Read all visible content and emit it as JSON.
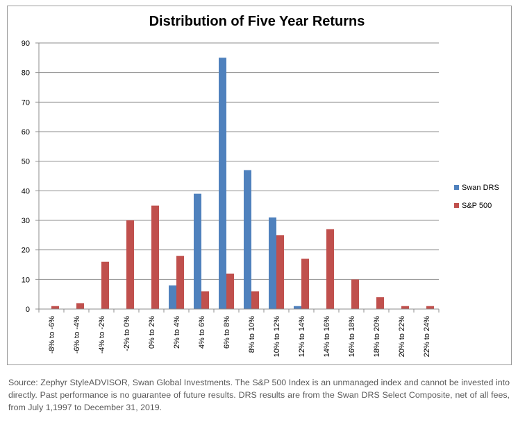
{
  "chart_data": {
    "type": "bar",
    "title": "Distribution of Five Year Returns",
    "xlabel": "",
    "ylabel": "",
    "ylim": [
      0,
      90
    ],
    "yticks": [
      0,
      10,
      20,
      30,
      40,
      50,
      60,
      70,
      80,
      90
    ],
    "grid": true,
    "legend_position": "right",
    "categories": [
      "-8% to -6%",
      "-6% to -4%",
      "-4% to -2%",
      "-2% to 0%",
      "0% to 2%",
      "2% to 4%",
      "4% to 6%",
      "6% to 8%",
      "8% to 10%",
      "10% to 12%",
      "12% to 14%",
      "14% to 16%",
      "16% to 18%",
      "18% to 20%",
      "20% to 22%",
      "22% to 24%"
    ],
    "series": [
      {
        "name": "Swan DRS",
        "color": "#4f81bd",
        "values": [
          0,
          0,
          0,
          0,
          0,
          8,
          39,
          85,
          47,
          31,
          1,
          0,
          0,
          0,
          0,
          0
        ]
      },
      {
        "name": "S&P 500",
        "color": "#c0504d",
        "values": [
          1,
          2,
          16,
          30,
          35,
          18,
          6,
          12,
          6,
          25,
          17,
          27,
          10,
          4,
          1,
          1
        ]
      }
    ]
  },
  "footnote": "Source: Zephyr StyleADVISOR, Swan Global Investments. The S&P 500 Index is an unmanaged index and cannot be invested into directly. Past performance is no guarantee of future results. DRS results are from the Swan DRS Select Composite, net of all fees, from July 1,1997 to December 31, 2019."
}
